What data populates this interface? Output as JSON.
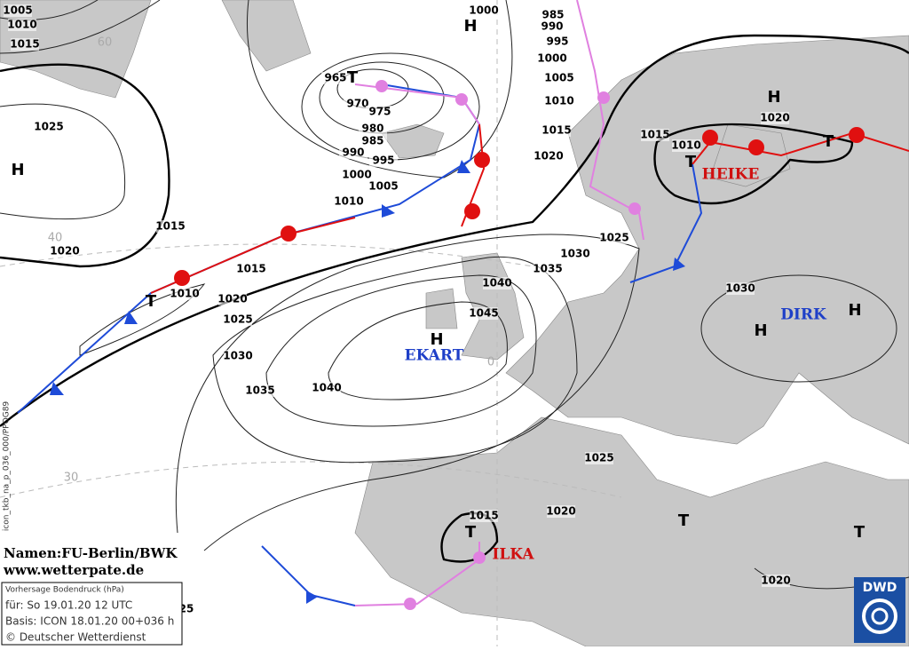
{
  "isobar_labels": [
    "1005",
    "1010",
    "1015",
    "1025",
    "1015",
    "1020",
    "965",
    "970",
    "975",
    "980",
    "985",
    "990",
    "995",
    "1000",
    "1005",
    "1010",
    "1000",
    "985",
    "990",
    "995",
    "1000",
    "1005",
    "1010",
    "1015",
    "1020",
    "1015",
    "1010",
    "1020",
    "1025",
    "1030",
    "1035",
    "1040",
    "1045",
    "1015",
    "1010",
    "1020",
    "1025",
    "1030",
    "1035",
    "1040",
    "1030",
    "1025",
    "1020",
    "1015",
    "1020",
    "25"
  ],
  "grid_labels": [
    "60",
    "40",
    "30",
    "0"
  ],
  "centers": [
    "H",
    "H",
    "H",
    "H",
    "H",
    "H",
    "T",
    "T",
    "T",
    "T",
    "T",
    "T",
    "T"
  ],
  "system_names": [
    "HEIKE",
    "DIRK",
    "EKART",
    "ILKA"
  ],
  "credits": {
    "names": "Namen:FU-Berlin/BWK",
    "website": "www.wetterpate.de"
  },
  "info_box": {
    "product": "Vorhersage Bodendruck (hPa)",
    "valid": "für:  So 19.01.20  12 UTC",
    "base": "Basis: ICON  18.01.20 00+036 h",
    "copyright": "© Deutscher Wetterdienst"
  },
  "side_code": "icon_tkb_na_p_036_000/PPOG89",
  "logo": "DWD"
}
